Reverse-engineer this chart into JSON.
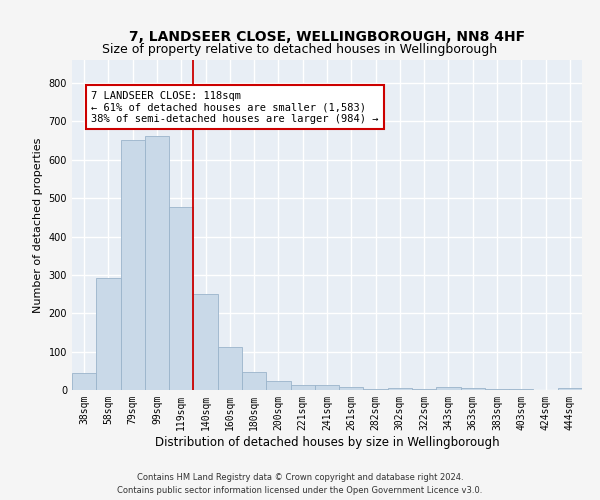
{
  "title": "7, LANDSEER CLOSE, WELLINGBOROUGH, NN8 4HF",
  "subtitle": "Size of property relative to detached houses in Wellingborough",
  "xlabel": "Distribution of detached houses by size in Wellingborough",
  "ylabel": "Number of detached properties",
  "categories": [
    "38sqm",
    "58sqm",
    "79sqm",
    "99sqm",
    "119sqm",
    "140sqm",
    "160sqm",
    "180sqm",
    "200sqm",
    "221sqm",
    "241sqm",
    "261sqm",
    "282sqm",
    "302sqm",
    "322sqm",
    "343sqm",
    "363sqm",
    "383sqm",
    "403sqm",
    "424sqm",
    "444sqm"
  ],
  "values": [
    45,
    293,
    651,
    663,
    477,
    249,
    112,
    48,
    24,
    14,
    14,
    8,
    2,
    5,
    2,
    8,
    5,
    2,
    2,
    0,
    5
  ],
  "bar_color": "#c9d9e8",
  "bar_edgecolor": "#9ab4cb",
  "vline_color": "#cc0000",
  "annotation_text": "7 LANDSEER CLOSE: 118sqm\n← 61% of detached houses are smaller (1,583)\n38% of semi-detached houses are larger (984) →",
  "annotation_box_facecolor": "#ffffff",
  "annotation_box_edgecolor": "#cc0000",
  "ylim": [
    0,
    860
  ],
  "yticks": [
    0,
    100,
    200,
    300,
    400,
    500,
    600,
    700,
    800
  ],
  "plot_bg_color": "#e8eef5",
  "grid_color": "#ffffff",
  "fig_bg_color": "#f5f5f5",
  "footer_text": "Contains HM Land Registry data © Crown copyright and database right 2024.\nContains public sector information licensed under the Open Government Licence v3.0.",
  "title_fontsize": 10,
  "subtitle_fontsize": 9,
  "xlabel_fontsize": 8.5,
  "ylabel_fontsize": 8,
  "tick_fontsize": 7,
  "annotation_fontsize": 7.5,
  "footer_fontsize": 6
}
